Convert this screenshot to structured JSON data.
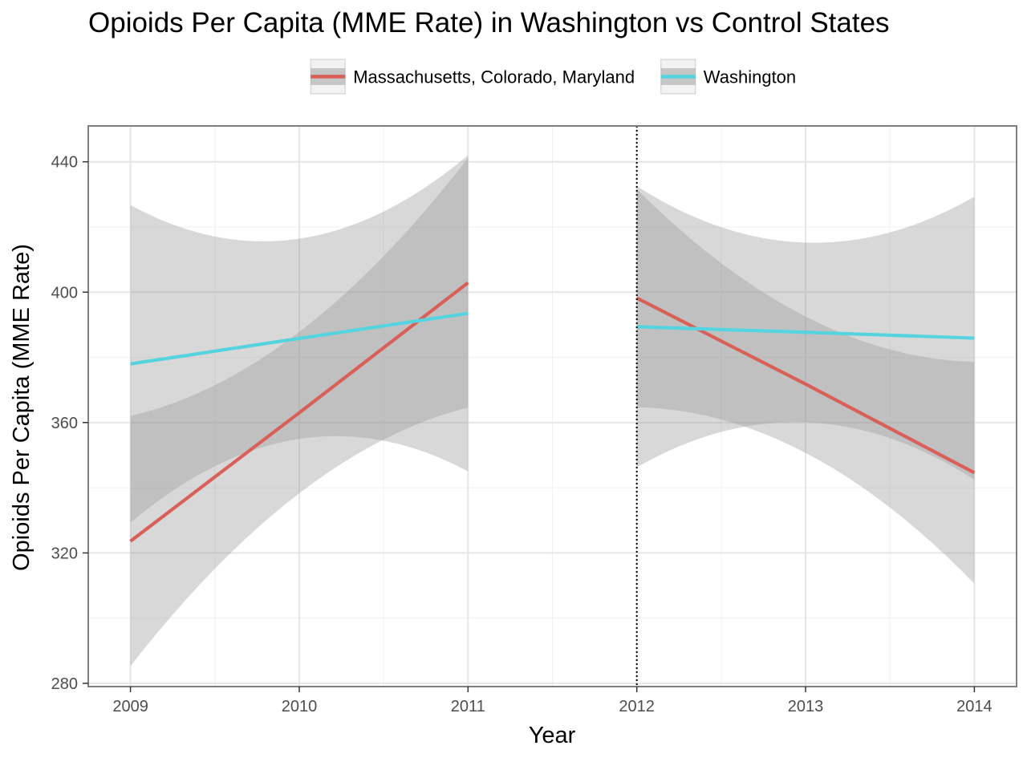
{
  "chart_data": {
    "type": "line",
    "title": "Opioids Per Capita (MME Rate) in Washington vs Control States",
    "xlabel": "Year",
    "ylabel": "Opioids Per Capita (MME Rate)",
    "xlim": [
      2008.75,
      2014.25
    ],
    "ylim": [
      279,
      451
    ],
    "x_ticks": [
      2009,
      2010,
      2011,
      2012,
      2013,
      2014
    ],
    "y_ticks": [
      280,
      320,
      360,
      400,
      440
    ],
    "vline": {
      "x": 2012,
      "style": "dotted",
      "color": "#000000"
    },
    "grid": true,
    "legend_position": "top",
    "series": [
      {
        "name": "Massachusetts, Colorado, Maryland",
        "color": "#d95f59",
        "segments": [
          {
            "x": [
              2009,
              2010,
              2011
            ],
            "y": [
              323.6,
              363.0,
              402.9
            ],
            "ci_lower": [
              285.3,
              338.3,
              364.6
            ],
            "ci_upper": [
              362.0,
              387.8,
              441.2
            ]
          },
          {
            "x": [
              2012,
              2013,
              2014
            ],
            "y": [
              398.2,
              371.8,
              344.6
            ],
            "ci_lower": [
              364.7,
              350.7,
              310.6
            ],
            "ci_upper": [
              431.6,
              392.5,
              378.6
            ]
          }
        ]
      },
      {
        "name": "Washington",
        "color": "#55d4df",
        "segments": [
          {
            "x": [
              2009,
              2010,
              2011
            ],
            "y": [
              378.0,
              385.8,
              393.5
            ],
            "ci_lower": [
              329.3,
              355.0,
              345.0
            ],
            "ci_upper": [
              426.7,
              416.4,
              442.0
            ]
          },
          {
            "x": [
              2012,
              2013,
              2014
            ],
            "y": [
              389.4,
              387.7,
              385.9
            ],
            "ci_lower": [
              346.3,
              360.1,
              342.5
            ],
            "ci_upper": [
              432.5,
              415.2,
              429.3
            ]
          }
        ]
      }
    ],
    "ribbon_color": "#999999"
  }
}
